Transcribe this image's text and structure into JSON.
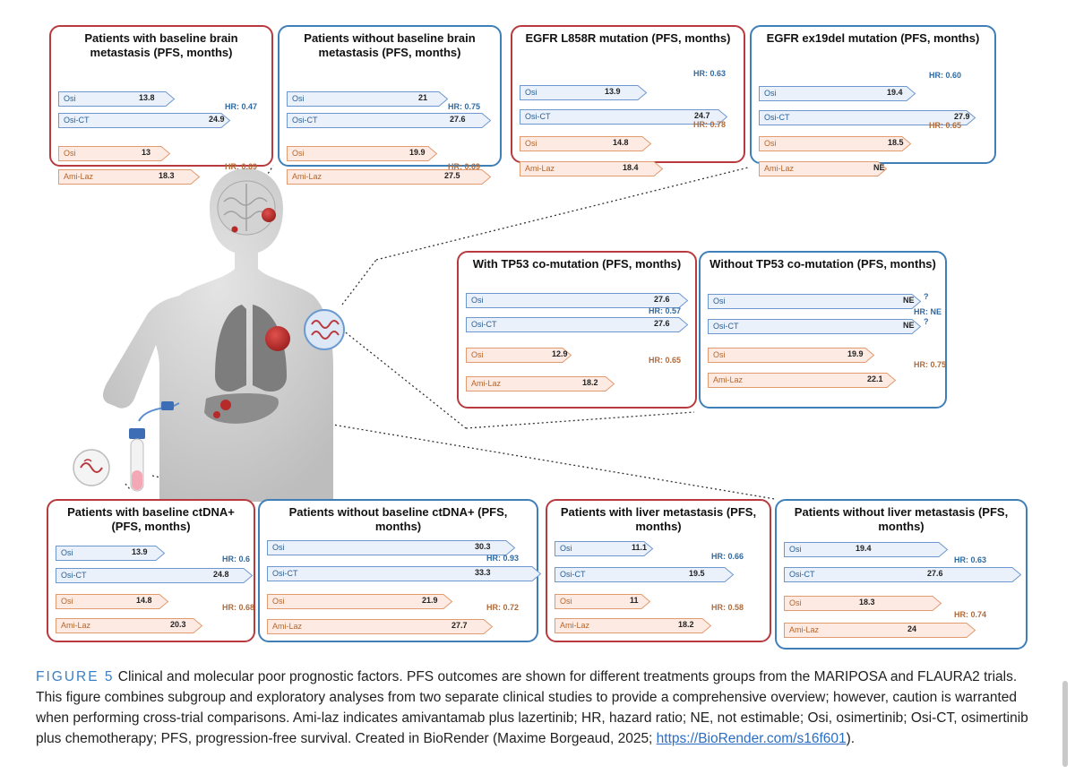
{
  "colors": {
    "red_border": "#b83a3e",
    "blue_border": "#3f7fb8",
    "blue_arrow_fill": "#eaf1fb",
    "blue_arrow_stroke": "#6f97cf",
    "orange_arrow_fill": "#fdeae2",
    "orange_arrow_stroke": "#e29a6f",
    "caption_label": "#3b7fc4"
  },
  "panels": [
    {
      "id": "brain-met",
      "color": "red",
      "title": "Patients with baseline brain metastasis (PFS, months)",
      "rows": [
        {
          "label": "Osi",
          "value": "13.8"
        },
        {
          "label": "Osi-CT",
          "value": "24.9"
        },
        {
          "label": "Osi",
          "value": "13"
        },
        {
          "label": "Ami-Laz",
          "value": "18.3"
        }
      ],
      "hr_top": "HR: 0.47",
      "hr_bottom": "HR: 0.69"
    },
    {
      "id": "no-brain-met",
      "color": "blue",
      "title": "Patients without baseline brain metastasis (PFS, months)",
      "rows": [
        {
          "label": "Osi",
          "value": "21"
        },
        {
          "label": "Osi-CT",
          "value": "27.6"
        },
        {
          "label": "Osi",
          "value": "19.9"
        },
        {
          "label": "Ami-Laz",
          "value": "27.5"
        }
      ],
      "hr_top": "HR: 0.75",
      "hr_bottom": "HR: 0.69"
    },
    {
      "id": "l858r",
      "color": "red",
      "title": "EGFR L858R mutation (PFS, months)",
      "rows": [
        {
          "label": "Osi",
          "value": "13.9"
        },
        {
          "label": "Osi-CT",
          "value": "24.7"
        },
        {
          "label": "Osi",
          "value": "14.8"
        },
        {
          "label": "Ami-Laz",
          "value": "18.4"
        }
      ],
      "hr_top": "HR: 0.63",
      "hr_bottom": "HR: 0.78"
    },
    {
      "id": "ex19del",
      "color": "blue",
      "title": "EGFR ex19del mutation (PFS, months)",
      "rows": [
        {
          "label": "Osi",
          "value": "19.4"
        },
        {
          "label": "Osi-CT",
          "value": "27.9"
        },
        {
          "label": "Osi",
          "value": "18.5"
        },
        {
          "label": "Ami-Laz",
          "value": "NE"
        }
      ],
      "hr_top": "HR: 0.60",
      "hr_bottom": "HR: 0.65"
    },
    {
      "id": "tp53",
      "color": "red",
      "title": "With TP53 co-mutation (PFS, months)",
      "rows": [
        {
          "label": "Osi",
          "value": "27.6"
        },
        {
          "label": "Osi-CT",
          "value": "27.6"
        },
        {
          "label": "Osi",
          "value": "12.9"
        },
        {
          "label": "Ami-Laz",
          "value": "18.2"
        }
      ],
      "hr_top": "HR: 0.57",
      "hr_bottom": "HR: 0.65"
    },
    {
      "id": "no-tp53",
      "color": "blue",
      "title": "Without TP53 co-mutation (PFS, months)",
      "rows": [
        {
          "label": "Osi",
          "value": "NE",
          "q": "?"
        },
        {
          "label": "Osi-CT",
          "value": "NE",
          "q": "?"
        },
        {
          "label": "Osi",
          "value": "19.9"
        },
        {
          "label": "Ami-Laz",
          "value": "22.1"
        }
      ],
      "hr_top": "HR: NE",
      "hr_bottom": "HR: 0.75"
    },
    {
      "id": "ctdna",
      "color": "red",
      "title": "Patients with baseline ctDNA+ (PFS, months)",
      "rows": [
        {
          "label": "Osi",
          "value": "13.9"
        },
        {
          "label": "Osi-CT",
          "value": "24.8"
        },
        {
          "label": "Osi",
          "value": "14.8"
        },
        {
          "label": "Ami-Laz",
          "value": "20.3"
        }
      ],
      "hr_top": "HR: 0.6",
      "hr_bottom": "HR: 0.68"
    },
    {
      "id": "no-ctdna",
      "color": "blue",
      "title": "Patients without baseline ctDNA+ (PFS, months)",
      "rows": [
        {
          "label": "Osi",
          "value": "30.3"
        },
        {
          "label": "Osi-CT",
          "value": "33.3"
        },
        {
          "label": "Osi",
          "value": "21.9"
        },
        {
          "label": "Ami-Laz",
          "value": "27.7"
        }
      ],
      "hr_top": "HR: 0.93",
      "hr_bottom": "HR: 0.72"
    },
    {
      "id": "liver-met",
      "color": "red",
      "title": "Patients with liver metastasis (PFS, months)",
      "rows": [
        {
          "label": "Osi",
          "value": "11.1"
        },
        {
          "label": "Osi-CT",
          "value": "19.5"
        },
        {
          "label": "Osi",
          "value": "11"
        },
        {
          "label": "Ami-Laz",
          "value": "18.2"
        }
      ],
      "hr_top": "HR: 0.66",
      "hr_bottom": "HR: 0.58"
    },
    {
      "id": "no-liver-met",
      "color": "blue",
      "title": "Patients without liver metastasis (PFS, months)",
      "rows": [
        {
          "label": "Osi",
          "value": "19.4"
        },
        {
          "label": "Osi-CT",
          "value": "27.6"
        },
        {
          "label": "Osi",
          "value": "18.3"
        },
        {
          "label": "Ami-Laz",
          "value": "24"
        }
      ],
      "hr_top": "HR: 0.63",
      "hr_bottom": "HR: 0.74"
    }
  ],
  "caption": {
    "label": "FIGURE 5",
    "text": " Clinical and molecular poor prognostic factors. PFS outcomes are shown for different treatments groups from the MARIPOSA and FLAURA2 trials. This figure combines subgroup and exploratory analyses from two separate clinical studies to provide a comprehensive overview; however, caution is warranted when performing cross-trial comparisons. Ami-laz indicates amivantamab plus lazertinib; HR, hazard ratio; NE, not estimable; Osi, osimertinib; Osi-CT, osimertinib plus chemotherapy; PFS, progression-free survival. Created in BioRender (Maxime Borgeaud, 2025; ",
    "link": "https://BioRender.com/s16f601",
    "end": ")."
  }
}
